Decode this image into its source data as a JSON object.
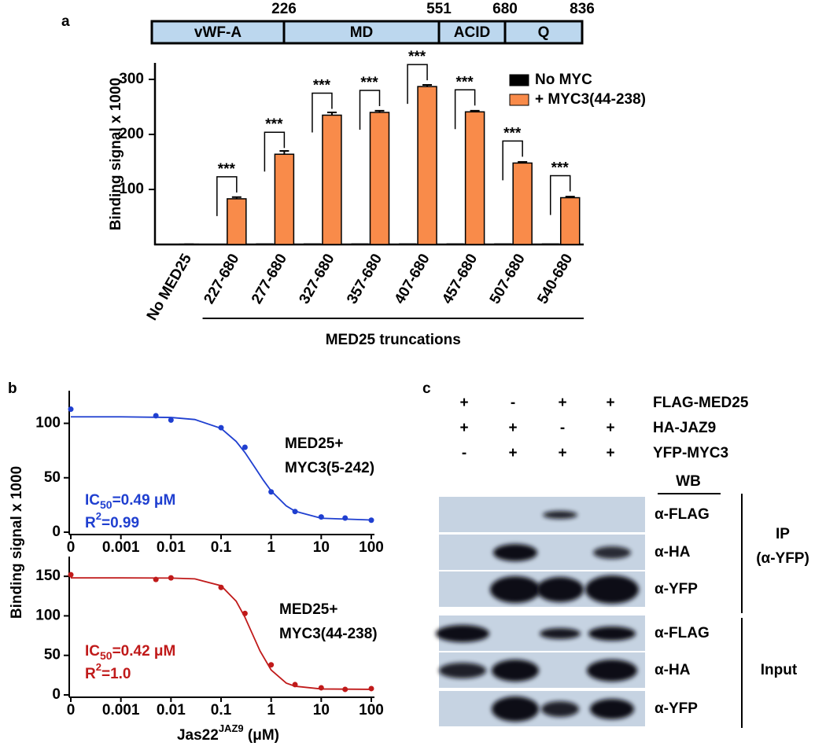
{
  "panel_labels": [
    "a",
    "b",
    "c"
  ],
  "domain_map": {
    "domains": [
      "vWF-A",
      "MD",
      "ACID",
      "Q"
    ],
    "boundaries": [
      226,
      551,
      680,
      836
    ]
  },
  "chart_data": [
    {
      "type": "bar",
      "ylabel": "Binding signal x 1000",
      "xlabel": "MED25 truncations",
      "categories": [
        "No MED25",
        "227-680",
        "277-680",
        "327-680",
        "357-680",
        "407-680",
        "457-680",
        "507-680",
        "540-680"
      ],
      "series": [
        {
          "name": "No MYC",
          "color": "#000000",
          "values": [
            1,
            1,
            2,
            2,
            2,
            2,
            2,
            2,
            2
          ]
        },
        {
          "name": "+ MYC3(44-238)",
          "color": "#f98b4a",
          "values": [
            0.5,
            83,
            164,
            235,
            240,
            287,
            241,
            148,
            85
          ],
          "errors": [
            0,
            3,
            6,
            5,
            3,
            3,
            2,
            2,
            2
          ]
        }
      ],
      "significance": [
        null,
        "***",
        "***",
        "***",
        "***",
        "***",
        "***",
        "***",
        "***"
      ],
      "ylim": [
        0,
        330
      ],
      "yticks": [
        100,
        200,
        300
      ],
      "legend": "top-right"
    },
    {
      "type": "line",
      "log_x": true,
      "ylabel": "Binding signal x 1000",
      "xlim": [
        0,
        100
      ],
      "xticks": [
        0,
        0.001,
        0.01,
        0.1,
        1,
        10,
        100
      ],
      "ylim": [
        0,
        130
      ],
      "yticks": [
        0,
        50,
        100
      ],
      "series": [
        {
          "color": "#1f3fd0",
          "x": [
            0,
            0.005,
            0.01,
            0.1,
            0.3,
            1,
            3,
            10,
            30,
            100
          ],
          "values": [
            113,
            107,
            103,
            96,
            78,
            37,
            19,
            14,
            13,
            11
          ]
        }
      ],
      "fit": {
        "x": [
          0,
          0.001,
          0.01,
          0.03,
          0.1,
          0.2,
          0.3,
          0.49,
          0.7,
          1,
          2,
          3,
          10,
          100
        ],
        "values": [
          106,
          106,
          105.4,
          103.5,
          95.4,
          83.4,
          73.2,
          58.5,
          47.7,
          37.9,
          24.2,
          19.3,
          12.8,
          11.2
        ]
      },
      "labels": [
        "MED25+",
        "MYC3(5-242)"
      ],
      "stats": [
        {
          "text": "IC",
          "sub": "50",
          "rest": "=0.49 μM"
        },
        {
          "text": "R",
          "sup": "2",
          "rest": "=0.99"
        }
      ]
    },
    {
      "type": "line",
      "log_x": true,
      "xlabel": {
        "text": "Jas22",
        "sup": "JAZ9",
        "rest": " (μM)"
      },
      "xlim": [
        0,
        100
      ],
      "xticks": [
        0,
        0.001,
        0.01,
        0.1,
        1,
        10,
        100
      ],
      "ylim": [
        0,
        175
      ],
      "yticks": [
        0,
        50,
        100,
        150
      ],
      "series": [
        {
          "color": "#c01a1a",
          "x": [
            0,
            0.005,
            0.01,
            0.1,
            0.3,
            1,
            3,
            10,
            30,
            100
          ],
          "values": [
            152,
            146,
            148,
            136,
            103,
            38,
            13,
            9,
            7,
            8
          ]
        }
      ],
      "fit": {
        "x": [
          0,
          0.001,
          0.01,
          0.03,
          0.1,
          0.2,
          0.3,
          0.42,
          0.6,
          1,
          2,
          3,
          10,
          100
        ],
        "values": [
          148,
          148,
          147.8,
          146.8,
          138.1,
          118.6,
          98.2,
          77.5,
          55.6,
          31.5,
          15,
          11,
          7.5,
          7
        ]
      },
      "labels": [
        "MED25+",
        "MYC3(44-238)"
      ],
      "stats": [
        {
          "text": "IC",
          "sub": "50",
          "rest": "=0.42 μM"
        },
        {
          "text": "R",
          "sup": "2",
          "rest": "=1.0"
        }
      ]
    }
  ],
  "blot": {
    "treatments": [
      {
        "label": "FLAG-MED25",
        "signs": [
          "+",
          "-",
          "+",
          "+"
        ]
      },
      {
        "label": "HA-JAZ9",
        "signs": [
          "+",
          "+",
          "-",
          "+"
        ]
      },
      {
        "label": "YFP-MYC3",
        "signs": [
          "-",
          "+",
          "+",
          "+"
        ]
      }
    ],
    "wb_header": "WB",
    "ip_rows": [
      "α-FLAG",
      "α-HA",
      "α-YFP"
    ],
    "input_rows": [
      "α-FLAG",
      "α-HA",
      "α-YFP"
    ],
    "ip_label": "IP",
    "ip_sublabel": "(α-YFP)",
    "input_label": "Input"
  }
}
